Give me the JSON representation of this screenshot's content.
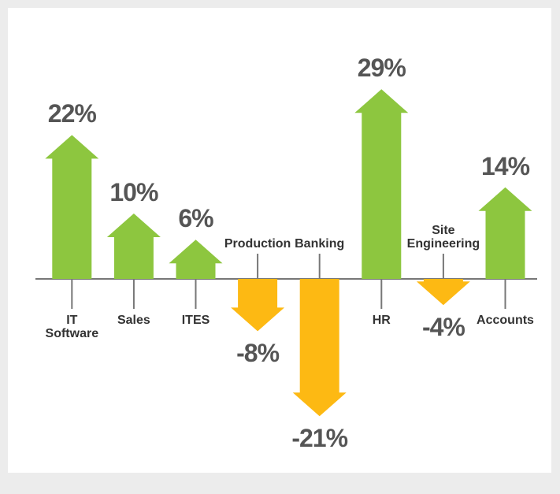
{
  "chart_data": {
    "type": "arrow-bar",
    "categories": [
      "IT Software",
      "Sales",
      "ITES",
      "Production",
      "Banking",
      "HR",
      "Site Engineering",
      "Accounts"
    ],
    "values": [
      22,
      10,
      6,
      -8,
      -21,
      29,
      -4,
      14
    ],
    "value_labels": [
      "22%",
      "10%",
      "6%",
      "-8%",
      "-21%",
      "29%",
      "-4%",
      "14%"
    ],
    "color_positive": "#8dc63f",
    "color_negative": "#fdb913"
  }
}
